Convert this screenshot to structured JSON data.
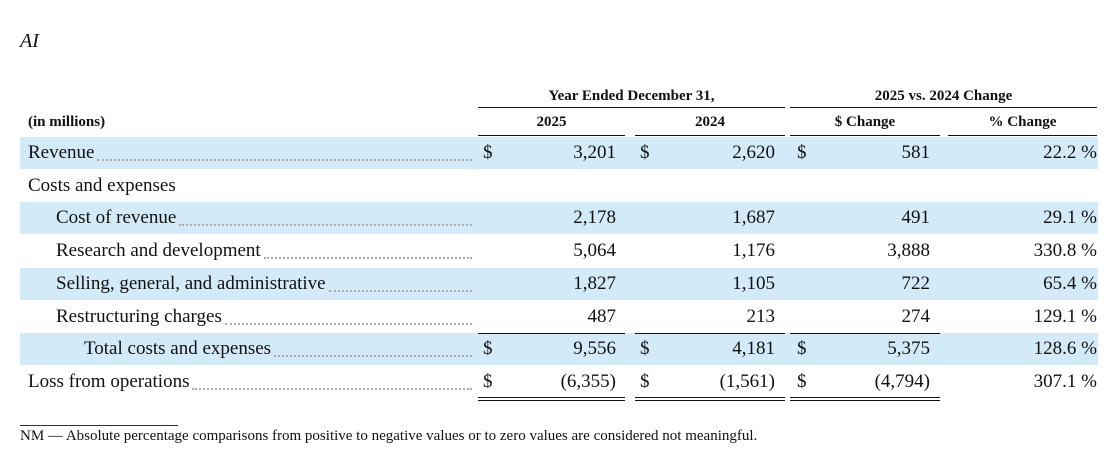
{
  "header": {
    "title": "AI"
  },
  "table": {
    "group_headers": [
      "Year Ended December 31,",
      "2025 vs. 2024 Change"
    ],
    "unit_label": "(in millions)",
    "column_headers": [
      "2025",
      "2024",
      "$ Change",
      "% Change"
    ],
    "rows": [
      {
        "label": "Revenue",
        "currency": "$",
        "values": [
          "3,201",
          "2,620",
          "581",
          "22.2 %"
        ]
      },
      {
        "label": "Costs and expenses"
      },
      {
        "label": "Cost of revenue",
        "values": [
          "2,178",
          "1,687",
          "491",
          "29.1 %"
        ]
      },
      {
        "label": "Research and development",
        "values": [
          "5,064",
          "1,176",
          "3,888",
          "330.8 %"
        ]
      },
      {
        "label": "Selling, general, and administrative",
        "values": [
          "1,827",
          "1,105",
          "722",
          "65.4 %"
        ]
      },
      {
        "label": "Restructuring charges",
        "values": [
          "487",
          "213",
          "274",
          "129.1 %"
        ]
      },
      {
        "label": "Total costs and expenses",
        "currency": "$",
        "values": [
          "9,556",
          "4,181",
          "5,375",
          "128.6 %"
        ]
      },
      {
        "label": "Loss from operations",
        "currency": "$",
        "values": [
          "(6,355)",
          "(1,561)",
          "(4,794)",
          "307.1 %"
        ]
      }
    ]
  },
  "footnote": "NM — Absolute percentage comparisons from positive to negative values or to zero values are considered not meaningful."
}
